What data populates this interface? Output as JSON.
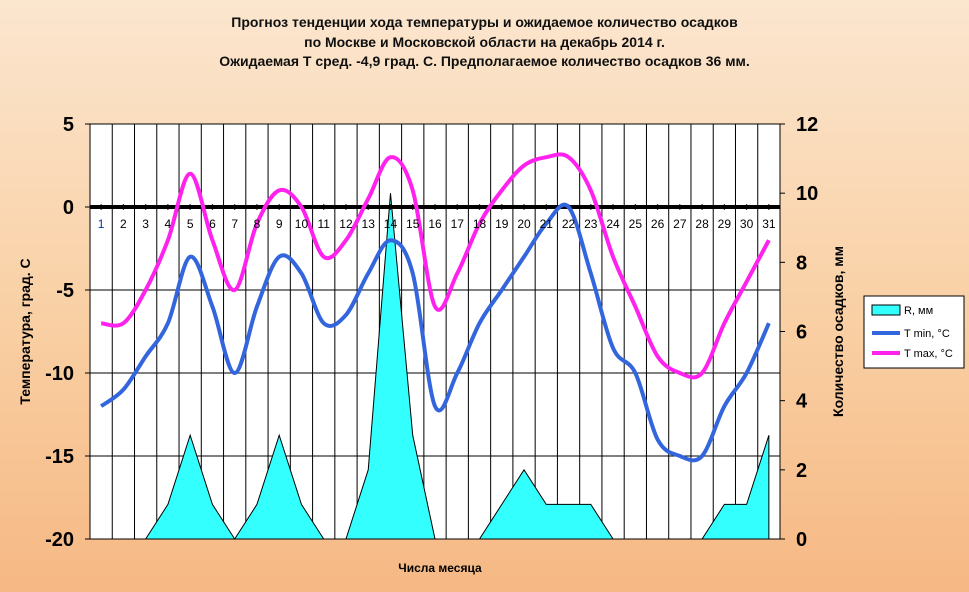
{
  "chart_data": {
    "type": "line",
    "title_lines": [
      "Прогноз тенденции хода температуры и ожидаемое количество осадков",
      "по Москве и Московской области на декабрь 2014 г.",
      "Ожидаемая Т сред. -4,9 град. С. Предполагаемое количество осадков 36 мм."
    ],
    "xlabel": "Числа месяца",
    "ylabel_left": "Температура, град. С",
    "ylabel_right": "Количество осадков, мм",
    "ylim_left": [
      -20,
      5
    ],
    "ylim_right": [
      0,
      12
    ],
    "yticks_left": [
      "5",
      "0",
      "-5",
      "-10",
      "-15",
      "-20"
    ],
    "yticks_right": [
      "12",
      "10",
      "8",
      "6",
      "4",
      "2",
      "0"
    ],
    "categories": [
      "1",
      "2",
      "3",
      "4",
      "5",
      "6",
      "7",
      "8",
      "9",
      "10",
      "11",
      "12",
      "13",
      "14",
      "15",
      "16",
      "17",
      "18",
      "19",
      "20",
      "21",
      "22",
      "23",
      "24",
      "25",
      "26",
      "27",
      "28",
      "29",
      "30",
      "31"
    ],
    "grid": "vertical",
    "legend_position": "right",
    "series": [
      {
        "name": "R, мм",
        "type": "area",
        "axis": "right",
        "color": "#33ffff",
        "values": [
          0,
          0,
          0,
          1,
          3,
          1,
          0,
          1,
          3,
          1,
          0,
          0,
          2,
          10,
          3,
          0,
          0,
          0,
          1,
          2,
          1.0,
          1.0,
          1.0,
          0,
          0,
          0,
          0,
          0,
          1,
          1,
          3
        ]
      },
      {
        "name": "T min, °C",
        "type": "line",
        "axis": "left",
        "color": "#3366dd",
        "values": [
          -12,
          -11,
          -9,
          -7,
          -3,
          -6,
          -10,
          -6,
          -3,
          -4,
          -7,
          -6.5,
          -4,
          -2,
          -4,
          -12,
          -10,
          -7,
          -5,
          -3,
          -1,
          0,
          -4,
          -8.5,
          -10,
          -14,
          -15,
          -15,
          -12,
          -10,
          -7
        ]
      },
      {
        "name": "T max, °C",
        "type": "line",
        "axis": "left",
        "color": "#ff22ee",
        "values": [
          -7,
          -7,
          -5,
          -2,
          2,
          -2,
          -5,
          -1,
          1,
          0,
          -3,
          -2,
          0.5,
          3,
          1,
          -6,
          -4,
          -1,
          1,
          2.5,
          3,
          3,
          1,
          -3,
          -6,
          -9,
          -10,
          -10,
          -7,
          -4.5,
          -2
        ]
      }
    ]
  }
}
